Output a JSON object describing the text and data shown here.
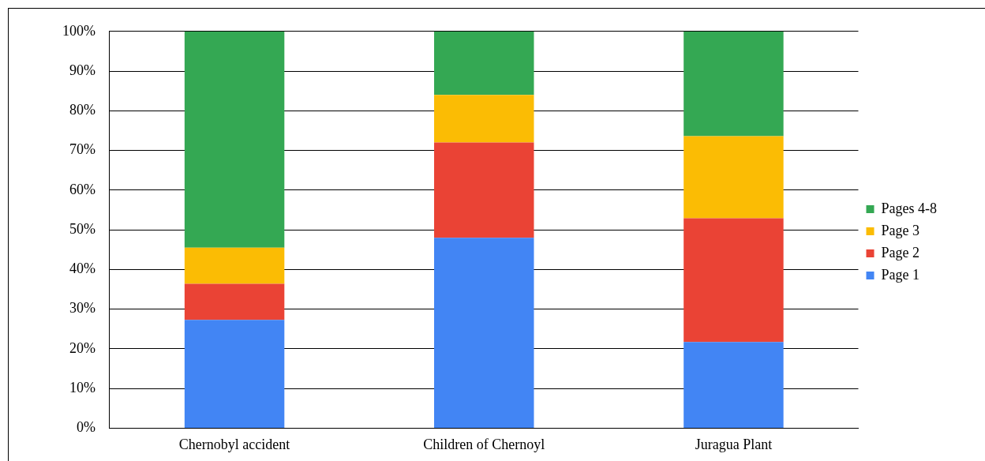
{
  "chart_data": {
    "type": "bar",
    "stacked": true,
    "categories": [
      "Chernobyl accident",
      "Children of Chernoyl",
      "Juragua Plant"
    ],
    "series": [
      {
        "name": "Page 1",
        "color": "#4285f4",
        "values": [
          27.3,
          48,
          21.7
        ]
      },
      {
        "name": "Page 2",
        "color": "#ea4335",
        "values": [
          9.1,
          24,
          31.2
        ]
      },
      {
        "name": "Page 3",
        "color": "#fbbc04",
        "values": [
          9.1,
          12,
          20.7
        ]
      },
      {
        "name": "Pages 4-8",
        "color": "#34a853",
        "values": [
          54.5,
          16,
          26.4
        ]
      }
    ],
    "ylim": [
      0,
      100
    ],
    "yticks": [
      {
        "value": 0,
        "label": "0%"
      },
      {
        "value": 10,
        "label": "10%"
      },
      {
        "value": 20,
        "label": "20%"
      },
      {
        "value": 30,
        "label": "30%"
      },
      {
        "value": 40,
        "label": "40%"
      },
      {
        "value": 50,
        "label": "50%"
      },
      {
        "value": 60,
        "label": "60%"
      },
      {
        "value": 70,
        "label": "70%"
      },
      {
        "value": 80,
        "label": "80%"
      },
      {
        "value": 90,
        "label": "90%"
      },
      {
        "value": 100,
        "label": "100%"
      }
    ],
    "grid": "y",
    "legend": "right"
  }
}
